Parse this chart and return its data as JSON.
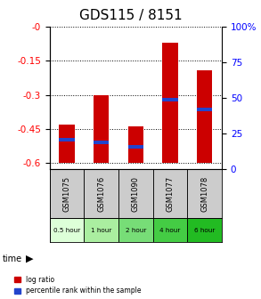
{
  "title": "GDS115 / 8151",
  "samples": [
    "GSM1075",
    "GSM1076",
    "GSM1090",
    "GSM1077",
    "GSM1078"
  ],
  "time_labels": [
    "0.5 hour",
    "1 hour",
    "2 hour",
    "4 hour",
    "6 hour"
  ],
  "bar_tops": [
    -0.43,
    -0.3,
    -0.44,
    -0.07,
    -0.19
  ],
  "bar_bottom": -0.6,
  "percentile_values": [
    21,
    19,
    16,
    49,
    42
  ],
  "ylim": [
    -0.63,
    0.0
  ],
  "yticks_left": [
    0.0,
    -0.15,
    -0.3,
    -0.45,
    -0.6
  ],
  "ytick_labels_left": [
    "-0",
    "-0.15",
    "-0.3",
    "-0.45",
    "-0.6"
  ],
  "yticks_right_pct": [
    0,
    25,
    50,
    75,
    100
  ],
  "ytick_labels_right": [
    "0",
    "25",
    "50",
    "75",
    "100%"
  ],
  "bar_color": "#cc0000",
  "blue_color": "#2244cc",
  "time_colors": [
    "#ddffd8",
    "#aaeea0",
    "#77dd77",
    "#44cc44",
    "#22bb22"
  ],
  "sample_bg": "#cccccc",
  "title_fontsize": 11,
  "tick_fontsize": 7.5,
  "bar_width": 0.45
}
